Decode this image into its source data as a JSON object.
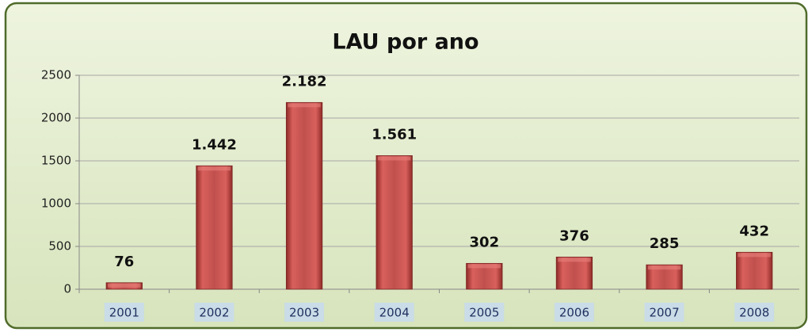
{
  "chart_data": {
    "type": "bar",
    "title": "LAU por ano",
    "categories": [
      "2001",
      "2002",
      "2003",
      "2004",
      "2005",
      "2006",
      "2007",
      "2008"
    ],
    "values": [
      76,
      1442,
      2182,
      1561,
      302,
      376,
      285,
      432
    ],
    "value_labels": [
      "76",
      "1.442",
      "2.182",
      "1.561",
      "302",
      "376",
      "285",
      "432"
    ],
    "color": "#c0504d",
    "ylim": [
      0,
      2500
    ],
    "yticks": [
      0,
      500,
      1000,
      1500,
      2000,
      2500
    ],
    "grid": true
  }
}
